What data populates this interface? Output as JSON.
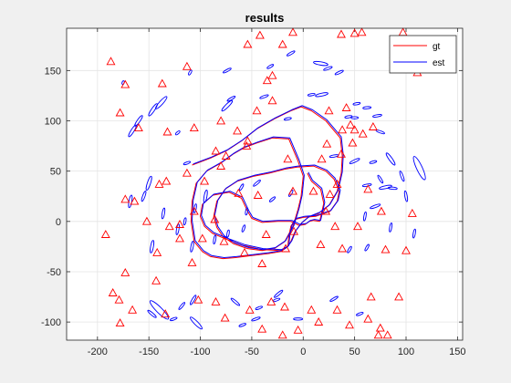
{
  "chart_data": {
    "type": "scatter",
    "title": "results",
    "xlabel": "",
    "ylabel": "",
    "xlim": [
      -230,
      155
    ],
    "ylim": [
      -118,
      192
    ],
    "xticks": [
      -200,
      -150,
      -100,
      -50,
      0,
      50,
      100,
      150
    ],
    "yticks": [
      -100,
      -50,
      0,
      50,
      100,
      150
    ],
    "grid": true,
    "legend": {
      "placement": "top-right",
      "entries": [
        {
          "name": "gt",
          "color": "#ff0000"
        },
        {
          "name": "est",
          "color": "#0000ff"
        }
      ]
    },
    "landmark_marker": {
      "shape": "triangle",
      "color": "#ff0000"
    },
    "landmarks": [
      [
        -10,
        188
      ],
      [
        -187,
        159
      ],
      [
        -173,
        136
      ],
      [
        -137,
        137
      ],
      [
        -113,
        154
      ],
      [
        -54,
        176
      ],
      [
        -42,
        185
      ],
      [
        -20,
        176
      ],
      [
        37,
        186
      ],
      [
        50,
        187
      ],
      [
        57,
        188
      ],
      [
        97,
        188
      ],
      [
        88,
        166
      ],
      [
        111,
        148
      ],
      [
        -178,
        108
      ],
      [
        -160,
        93
      ],
      [
        -132,
        89
      ],
      [
        -106,
        93
      ],
      [
        -80,
        100
      ],
      [
        -64,
        90
      ],
      [
        -54,
        80
      ],
      [
        25,
        110
      ],
      [
        42,
        113
      ],
      [
        -173,
        22
      ],
      [
        -164,
        20
      ],
      [
        -140,
        37
      ],
      [
        -133,
        40
      ],
      [
        -113,
        48
      ],
      [
        -96,
        40
      ],
      [
        -63,
        28
      ],
      [
        -44,
        26
      ],
      [
        -15,
        62
      ],
      [
        18,
        62
      ],
      [
        37,
        67
      ],
      [
        48,
        78
      ],
      [
        -152,
        0
      ],
      [
        -130,
        -5
      ],
      [
        -120,
        -17
      ],
      [
        -106,
        10
      ],
      [
        -98,
        -17
      ],
      [
        -86,
        2
      ],
      [
        -36,
        -13
      ],
      [
        -9,
        -10
      ],
      [
        22,
        10
      ],
      [
        31,
        -5
      ],
      [
        53,
        -5
      ],
      [
        76,
        10
      ],
      [
        106,
        8
      ],
      [
        -192,
        -13
      ],
      [
        -142,
        -31
      ],
      [
        -108,
        -41
      ],
      [
        -77,
        -20
      ],
      [
        -57,
        -31
      ],
      [
        -40,
        -42
      ],
      [
        -17,
        -27
      ],
      [
        17,
        -23
      ],
      [
        38,
        -27
      ],
      [
        80,
        -28
      ],
      [
        100,
        -29
      ],
      [
        -173,
        -51
      ],
      [
        -179,
        -78
      ],
      [
        -185,
        -71
      ],
      [
        -143,
        -59
      ],
      [
        -102,
        -78
      ],
      [
        -85,
        -80
      ],
      [
        -76,
        -96
      ],
      [
        -52,
        -88
      ],
      [
        -31,
        -80
      ],
      [
        -18,
        -85
      ],
      [
        8,
        -88
      ],
      [
        33,
        -88
      ],
      [
        66,
        -75
      ],
      [
        93,
        -75
      ],
      [
        -166,
        -88
      ],
      [
        -178,
        -101
      ],
      [
        -134,
        -92
      ],
      [
        -40,
        -107
      ],
      [
        -20,
        -113
      ],
      [
        -5,
        -108
      ],
      [
        15,
        -100
      ],
      [
        45,
        -103
      ],
      [
        63,
        -97
      ],
      [
        73,
        -113
      ],
      [
        82,
        -113
      ],
      [
        75,
        -106
      ],
      [
        26,
        27
      ],
      [
        46,
        96
      ],
      [
        38,
        91
      ],
      [
        50,
        91
      ],
      [
        68,
        94
      ],
      [
        58,
        87
      ],
      [
        23,
        77
      ],
      [
        10,
        30
      ],
      [
        33,
        37
      ],
      [
        63,
        32
      ],
      [
        -120,
        -3
      ],
      [
        -10,
        30
      ],
      [
        -80,
        55
      ],
      [
        -75,
        65
      ],
      [
        -85,
        70
      ],
      [
        -55,
        75
      ],
      [
        -30,
        120
      ],
      [
        -35,
        140
      ],
      [
        -45,
        110
      ],
      [
        -30,
        145
      ]
    ],
    "landmark_estimates": [
      {
        "x": -175,
        "y": 138,
        "len": 4,
        "angle": 70
      },
      {
        "x": -138,
        "y": 118,
        "len": 18,
        "angle": 48
      },
      {
        "x": -146,
        "y": 111,
        "len": 16,
        "angle": 56
      },
      {
        "x": -110,
        "y": 148,
        "len": 6,
        "angle": 60
      },
      {
        "x": -74,
        "y": 150,
        "len": 10,
        "angle": 28
      },
      {
        "x": -32,
        "y": 154,
        "len": 8,
        "angle": 30
      },
      {
        "x": -12,
        "y": 167,
        "len": 10,
        "angle": 30
      },
      {
        "x": -38,
        "y": 124,
        "len": 10,
        "angle": 20
      },
      {
        "x": -74,
        "y": 115,
        "len": 16,
        "angle": 45
      },
      {
        "x": -70,
        "y": 122,
        "len": 10,
        "angle": 30
      },
      {
        "x": -122,
        "y": 88,
        "len": 6,
        "angle": 40
      },
      {
        "x": -166,
        "y": 90,
        "len": 15,
        "angle": 58
      },
      {
        "x": -160,
        "y": 100,
        "len": 14,
        "angle": 55
      },
      {
        "x": 17,
        "y": 157,
        "len": 16,
        "angle": -10
      },
      {
        "x": 24,
        "y": 152,
        "len": 10,
        "angle": 20
      },
      {
        "x": 35,
        "y": 148,
        "len": 10,
        "angle": 25
      },
      {
        "x": 8,
        "y": 126,
        "len": 8,
        "angle": 10
      },
      {
        "x": 18,
        "y": 126,
        "len": 14,
        "angle": 12
      },
      {
        "x": 52,
        "y": 117,
        "len": 8,
        "angle": 10
      },
      {
        "x": -15,
        "y": 102,
        "len": 8,
        "angle": 12
      },
      {
        "x": 62,
        "y": 113,
        "len": 9,
        "angle": 5
      },
      {
        "x": 50,
        "y": 103,
        "len": 8,
        "angle": 0
      },
      {
        "x": 72,
        "y": 105,
        "len": 10,
        "angle": 10
      },
      {
        "x": 44,
        "y": 104,
        "len": 8,
        "angle": 10
      },
      {
        "x": 75,
        "y": 89,
        "len": 10,
        "angle": -20
      },
      {
        "x": 30,
        "y": 65,
        "len": 10,
        "angle": 10
      },
      {
        "x": 50,
        "y": 60,
        "len": 12,
        "angle": 25
      },
      {
        "x": 68,
        "y": 59,
        "len": 8,
        "angle": 15
      },
      {
        "x": 85,
        "y": 62,
        "len": 16,
        "angle": -55
      },
      {
        "x": 113,
        "y": 53,
        "len": 28,
        "angle": -65
      },
      {
        "x": 75,
        "y": 42,
        "len": 10,
        "angle": -58
      },
      {
        "x": 96,
        "y": 45,
        "len": 12,
        "angle": -70
      },
      {
        "x": 80,
        "y": 34,
        "len": 14,
        "angle": 12
      },
      {
        "x": 87,
        "y": 33,
        "len": 10,
        "angle": -5
      },
      {
        "x": 62,
        "y": 36,
        "len": 10,
        "angle": 10
      },
      {
        "x": 70,
        "y": 15,
        "len": 12,
        "angle": 20
      },
      {
        "x": 100,
        "y": 25,
        "len": 12,
        "angle": -80
      },
      {
        "x": -168,
        "y": 20,
        "len": 14,
        "angle": 80
      },
      {
        "x": -150,
        "y": 38,
        "len": 16,
        "angle": 72
      },
      {
        "x": -155,
        "y": 25,
        "len": 12,
        "angle": 70
      },
      {
        "x": -113,
        "y": 58,
        "len": 8,
        "angle": 20
      },
      {
        "x": -105,
        "y": 13,
        "len": 10,
        "angle": 80
      },
      {
        "x": -136,
        "y": 8,
        "len": 12,
        "angle": 80
      },
      {
        "x": -147,
        "y": -25,
        "len": 14,
        "angle": 80
      },
      {
        "x": -122,
        "y": -8,
        "len": 12,
        "angle": 80
      },
      {
        "x": -95,
        "y": 25,
        "len": 14,
        "angle": 80
      },
      {
        "x": -60,
        "y": 34,
        "len": 8,
        "angle": 60
      },
      {
        "x": -45,
        "y": 38,
        "len": 10,
        "angle": 40
      },
      {
        "x": -30,
        "y": 22,
        "len": 8,
        "angle": 40
      },
      {
        "x": -12,
        "y": 28,
        "len": 8,
        "angle": 60
      },
      {
        "x": 60,
        "y": 5,
        "len": 10,
        "angle": 80
      },
      {
        "x": 85,
        "y": -6,
        "len": 10,
        "angle": 80
      },
      {
        "x": 108,
        "y": -12,
        "len": 10,
        "angle": 80
      },
      {
        "x": -108,
        "y": -25,
        "len": 12,
        "angle": 80
      },
      {
        "x": -58,
        "y": -7,
        "len": 8,
        "angle": 70
      },
      {
        "x": -86,
        "y": -18,
        "len": 10,
        "angle": 80
      },
      {
        "x": -73,
        "y": -12,
        "len": 8,
        "angle": 80
      },
      {
        "x": 45,
        "y": -28,
        "len": 8,
        "angle": 60
      },
      {
        "x": 62,
        "y": -26,
        "len": 8,
        "angle": 60
      },
      {
        "x": -140,
        "y": -88,
        "len": 28,
        "angle": -45
      },
      {
        "x": -147,
        "y": -92,
        "len": 12,
        "angle": -40
      },
      {
        "x": -126,
        "y": -97,
        "len": 8,
        "angle": 20
      },
      {
        "x": -104,
        "y": -101,
        "len": 18,
        "angle": -45
      },
      {
        "x": -107,
        "y": -78,
        "len": 12,
        "angle": 60
      },
      {
        "x": -66,
        "y": -80,
        "len": 12,
        "angle": -40
      },
      {
        "x": -43,
        "y": -86,
        "len": 8,
        "angle": 20
      },
      {
        "x": -24,
        "y": -72,
        "len": 12,
        "angle": 40
      },
      {
        "x": -26,
        "y": -78,
        "len": 8,
        "angle": 20
      },
      {
        "x": -46,
        "y": -97,
        "len": 10,
        "angle": 20
      },
      {
        "x": -5,
        "y": -97,
        "len": 10,
        "angle": 0
      },
      {
        "x": 30,
        "y": -77,
        "len": 10,
        "angle": 30
      },
      {
        "x": 55,
        "y": -92,
        "len": 8,
        "angle": 20
      },
      {
        "x": -118,
        "y": -84,
        "len": 10,
        "angle": 50
      },
      {
        "x": -59,
        "y": -103,
        "len": 8,
        "angle": 20
      },
      {
        "x": -115,
        "y": 0,
        "len": 8,
        "angle": 80
      },
      {
        "x": -55,
        "y": 10,
        "len": 8,
        "angle": 80
      }
    ],
    "trajectories": [
      {
        "name": "gt",
        "color": "#ff0000",
        "x": [
          -108,
          -90,
          -75,
          -60,
          -45,
          -28,
          -12,
          -2,
          8,
          22,
          36,
          38,
          37,
          33,
          25,
          15,
          5,
          -2,
          -8,
          -12,
          -16,
          -22,
          -34,
          -50,
          -66,
          -78,
          -90,
          -98,
          -106,
          -109,
          -108,
          -104,
          -94,
          -80,
          -68,
          -58,
          -45,
          -30,
          -14,
          -5,
          0,
          -2,
          -5,
          -10,
          -18,
          -28,
          -40,
          -54,
          -68,
          -78,
          -84,
          -87,
          -84,
          -76,
          -64,
          -48,
          -33,
          -18,
          -6,
          10,
          22,
          30,
          35,
          33,
          26,
          12,
          0,
          -8,
          -12,
          -14,
          -15,
          -22,
          -40,
          -58,
          -74,
          -88,
          -96,
          -100,
          -98,
          -88,
          -72,
          -60,
          -54,
          -50,
          -40,
          -25,
          -12,
          -4,
          2,
          6,
          10,
          16,
          20,
          17,
          8,
          4
        ],
        "y": [
          56,
          63,
          70,
          80,
          92,
          102,
          110,
          114,
          110,
          100,
          83,
          65,
          48,
          30,
          16,
          8,
          4,
          -2,
          -10,
          -20,
          -26,
          -30,
          -32,
          -34,
          -36,
          -37,
          -35,
          -30,
          -20,
          0,
          20,
          38,
          50,
          58,
          67,
          73,
          78,
          83,
          82,
          60,
          45,
          25,
          12,
          -5,
          -20,
          -27,
          -29,
          -27,
          -22,
          -15,
          -6,
          5,
          20,
          32,
          40,
          45,
          48,
          52,
          54,
          55,
          50,
          42,
          30,
          20,
          10,
          5,
          4,
          2,
          -5,
          -15,
          -25,
          -29,
          -28,
          -24,
          -18,
          -12,
          -5,
          5,
          17,
          26,
          29,
          23,
          10,
          3,
          -1,
          0,
          0,
          -4,
          -3,
          0,
          1,
          0,
          18,
          32,
          40,
          48
        ]
      },
      {
        "name": "est",
        "color": "#0000ff",
        "x": [
          -107,
          -89,
          -74,
          -59,
          -44,
          -27,
          -11,
          -1,
          9,
          23,
          37,
          39,
          38,
          34,
          26,
          16,
          6,
          -1,
          -7,
          -11,
          -15,
          -21,
          -33,
          -49,
          -65,
          -77,
          -89,
          -97,
          -105,
          -108,
          -107,
          -103,
          -93,
          -79,
          -67,
          -57,
          -44,
          -29,
          -13,
          -4,
          1,
          -1,
          -4,
          -9,
          -17,
          -27,
          -39,
          -53,
          -67,
          -77,
          -83,
          -86,
          -83,
          -75,
          -63,
          -47,
          -32,
          -17,
          -5,
          11,
          23,
          31,
          36,
          34,
          27,
          13,
          1,
          -7,
          -11,
          -13,
          -14,
          -21,
          -39,
          -57,
          -73,
          -87,
          -95,
          -99,
          -97,
          -87,
          -71,
          -59,
          -53,
          -49,
          -39,
          -24,
          -11,
          -3,
          3,
          7,
          11,
          17,
          21,
          18,
          9,
          5
        ],
        "y": [
          57,
          64,
          71,
          81,
          93,
          103,
          111,
          115,
          111,
          101,
          84,
          66,
          49,
          31,
          17,
          9,
          5,
          -1,
          -9,
          -19,
          -25,
          -29,
          -31,
          -33,
          -35,
          -36,
          -34,
          -29,
          -19,
          1,
          21,
          39,
          51,
          59,
          68,
          74,
          79,
          84,
          83,
          61,
          46,
          26,
          13,
          -4,
          -19,
          -26,
          -28,
          -26,
          -21,
          -14,
          -5,
          6,
          21,
          33,
          41,
          46,
          49,
          53,
          55,
          56,
          51,
          43,
          31,
          21,
          11,
          6,
          5,
          3,
          -4,
          -14,
          -24,
          -28,
          -27,
          -23,
          -17,
          -11,
          -4,
          6,
          18,
          27,
          30,
          24,
          11,
          4,
          0,
          1,
          1,
          -3,
          -2,
          1,
          2,
          1,
          19,
          33,
          41,
          49
        ]
      }
    ]
  }
}
